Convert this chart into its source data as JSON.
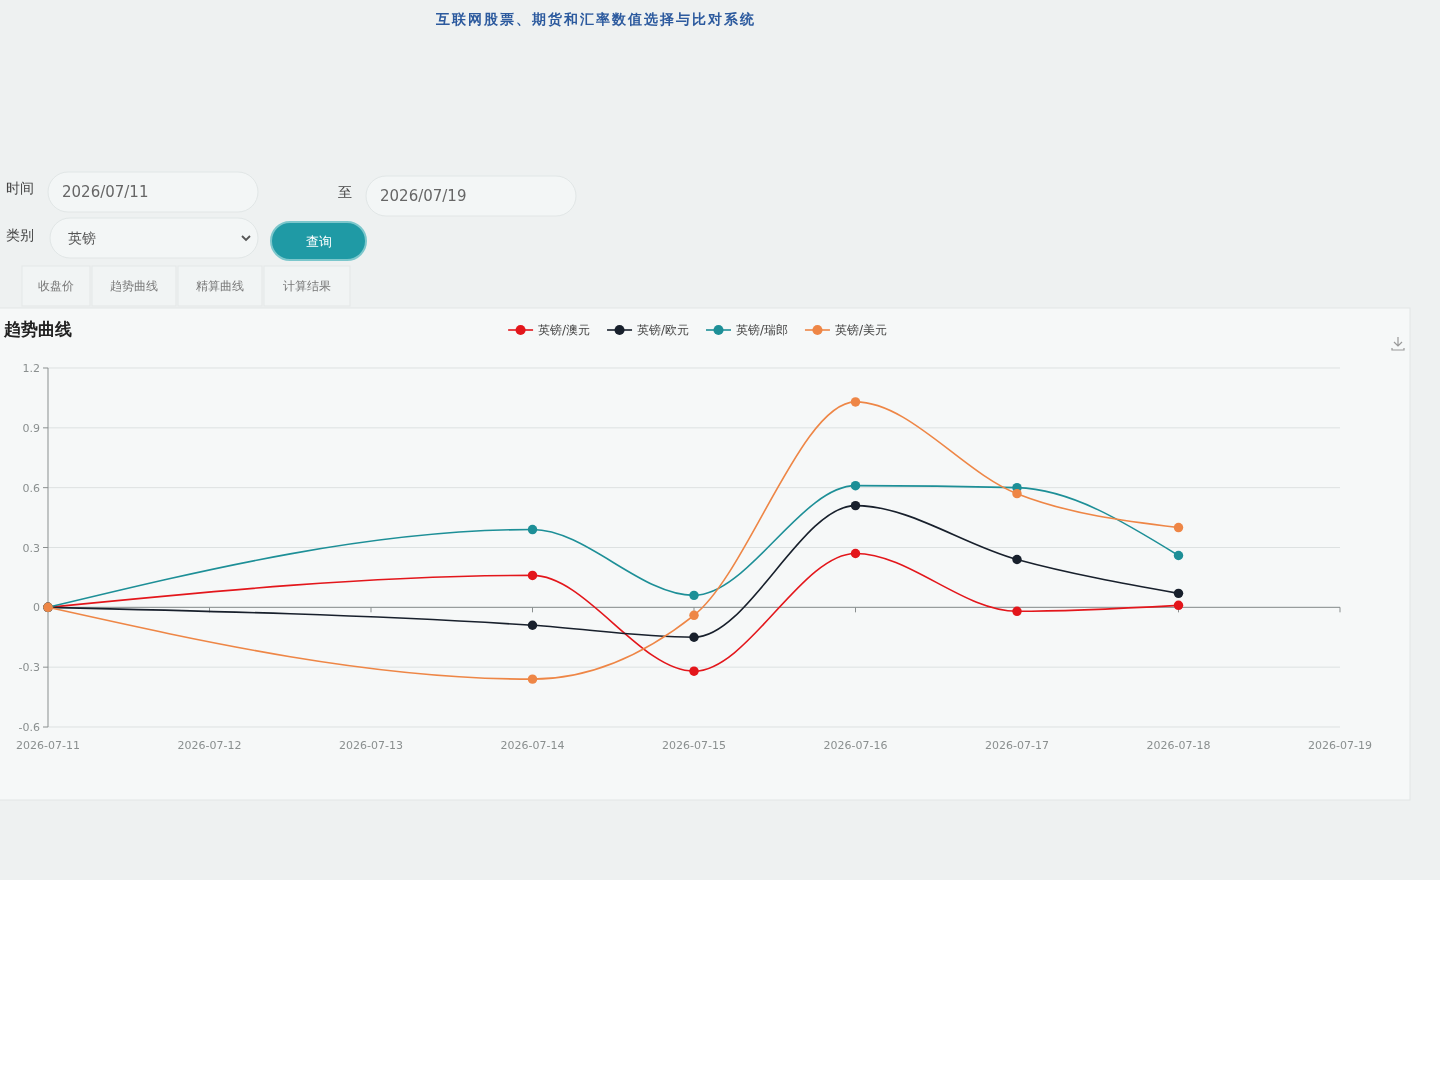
{
  "chart_data": {
    "type": "line",
    "title": "趋势曲线",
    "annotations": [
      "互联网股票、期货和汇率数值选择与比对系统",
      "时间",
      "2026/07/11",
      "至",
      "2026/07/19",
      "类别",
      "英镑",
      "查询",
      "收盘价",
      "趋势曲线",
      "精算曲线",
      "计算结果"
    ],
    "x": [
      "2026-07-11",
      "2026-07-14",
      "2026-07-15",
      "2026-07-16",
      "2026-07-17",
      "2026-07-18"
    ],
    "xlim": [
      "2026-07-11",
      "2026-07-19"
    ],
    "xticks": [
      "2026-07-11",
      "2026-07-12",
      "2026-07-13",
      "2026-07-14",
      "2026-07-15",
      "2026-07-16",
      "2026-07-17",
      "2026-07-18",
      "2026-07-19"
    ],
    "ylim": [
      -0.6,
      1.2
    ],
    "yticks": [
      -0.6,
      -0.3,
      0,
      0.3,
      0.6,
      0.9,
      1.2
    ],
    "grid": "y",
    "legend": "top",
    "marker": "circle",
    "series": [
      {
        "name": "英镑/澳元",
        "color": "#e3161b",
        "values": [
          0,
          0.16,
          -0.32,
          0.27,
          -0.02,
          0.01
        ]
      },
      {
        "name": "英镑/欧元",
        "color": "#18202c",
        "values": [
          0,
          -0.09,
          -0.15,
          0.51,
          0.24,
          0.07
        ]
      },
      {
        "name": "英镑/瑞郎",
        "color": "#1d8f97",
        "values": [
          0,
          0.39,
          0.06,
          0.61,
          0.6,
          0.26
        ]
      },
      {
        "name": "英镑/美元",
        "color": "#ee8646",
        "values": [
          0,
          -0.36,
          -0.04,
          1.03,
          0.57,
          0.4
        ]
      }
    ]
  }
}
